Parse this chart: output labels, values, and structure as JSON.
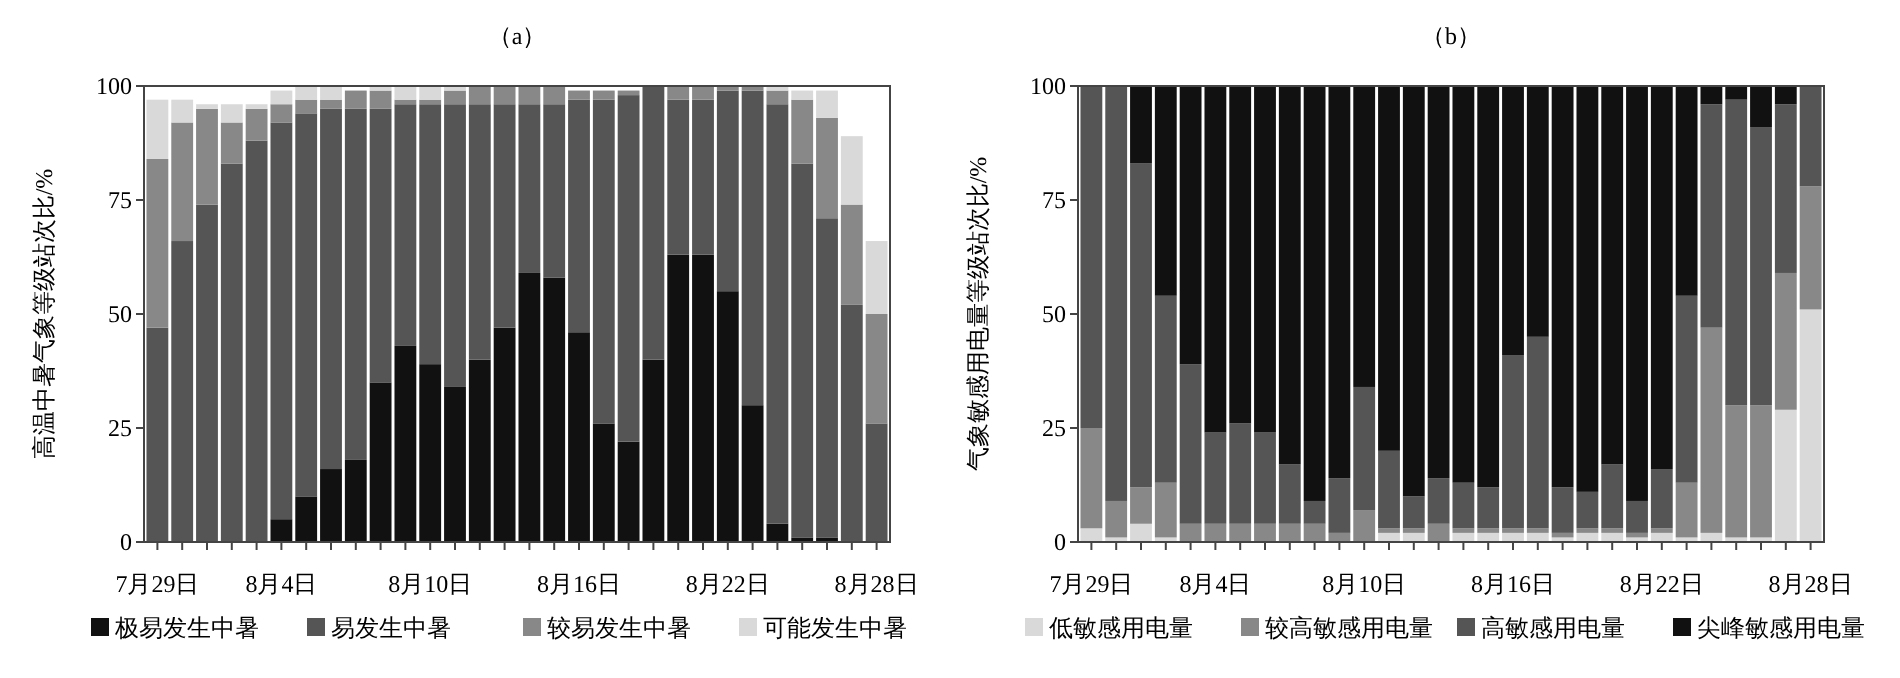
{
  "chart_data": [
    {
      "type": "bar",
      "title": "（a）",
      "ylabel": "高温中暑气象等级站次比/%",
      "stacked": true,
      "categories": [
        "7月29日",
        null,
        null,
        null,
        null,
        "8月4日",
        null,
        null,
        null,
        null,
        null,
        "8月10日",
        null,
        null,
        null,
        null,
        null,
        "8月16日",
        null,
        null,
        null,
        null,
        null,
        "8月22日",
        null,
        null,
        null,
        null,
        null,
        "8月28日"
      ],
      "series": [
        {
          "name": "极易发生中暑",
          "color": "#111111",
          "values": [
            0,
            0,
            0,
            0,
            0,
            5,
            10,
            16,
            18,
            35,
            43,
            39,
            34,
            40,
            47,
            59,
            58,
            46,
            26,
            22,
            40,
            63,
            63,
            55,
            30,
            4,
            1,
            1,
            0,
            0
          ]
        },
        {
          "name": "易发生中暑",
          "color": "#555555",
          "values": [
            47,
            66,
            74,
            83,
            88,
            87,
            84,
            79,
            77,
            60,
            53,
            57,
            62,
            56,
            49,
            37,
            38,
            51,
            71,
            76,
            60,
            34,
            34,
            44,
            69,
            92,
            82,
            70,
            52,
            26
          ]
        },
        {
          "name": "较易发生中暑",
          "color": "#888888",
          "values": [
            37,
            26,
            21,
            9,
            7,
            4,
            3,
            2,
            4,
            4,
            1,
            1,
            3,
            4,
            4,
            4,
            4,
            2,
            2,
            1,
            0,
            3,
            3,
            1,
            1,
            3,
            14,
            22,
            22,
            24
          ]
        },
        {
          "name": "可能发生中暑",
          "color": "#d9d9d9",
          "values": [
            13,
            5,
            1,
            4,
            1,
            3,
            3,
            3,
            0,
            1,
            3,
            3,
            1,
            0,
            0,
            0,
            0,
            0,
            0,
            0,
            0,
            0,
            0,
            0,
            0,
            1,
            2,
            6,
            15,
            16
          ]
        }
      ],
      "ylim": [
        0,
        100
      ],
      "yticks": [
        0,
        25,
        50,
        75,
        100
      ],
      "grid": false,
      "legend": "bottom"
    },
    {
      "type": "bar",
      "title": "（b）",
      "ylabel": "气象敏感用电量等级站次比/%",
      "stacked": true,
      "categories": [
        "7月29日",
        null,
        null,
        null,
        null,
        "8月4日",
        null,
        null,
        null,
        null,
        null,
        "8月10日",
        null,
        null,
        null,
        null,
        null,
        "8月16日",
        null,
        null,
        null,
        null,
        null,
        "8月22日",
        null,
        null,
        null,
        null,
        null,
        "8月28日"
      ],
      "series": [
        {
          "name": "低敏感用电量",
          "color": "#d9d9d9",
          "values": [
            3,
            1,
            4,
            1,
            0,
            0,
            0,
            0,
            0,
            0,
            0,
            0,
            2,
            2,
            0,
            2,
            2,
            2,
            2,
            1,
            2,
            2,
            1,
            2,
            1,
            2,
            1,
            1,
            29,
            51
          ]
        },
        {
          "name": "较高敏感用电量",
          "color": "#888888",
          "values": [
            22,
            8,
            8,
            12,
            4,
            4,
            4,
            4,
            4,
            4,
            2,
            7,
            1,
            1,
            4,
            1,
            1,
            1,
            1,
            1,
            1,
            1,
            1,
            1,
            12,
            45,
            29,
            29,
            30,
            27
          ]
        },
        {
          "name": "高敏感用电量",
          "color": "#555555",
          "values": [
            75,
            91,
            71,
            41,
            35,
            20,
            22,
            20,
            13,
            5,
            12,
            27,
            17,
            7,
            10,
            10,
            9,
            38,
            42,
            10,
            8,
            14,
            7,
            13,
            41,
            49,
            67,
            61,
            37,
            22
          ]
        },
        {
          "name": "尖峰敏感用电量",
          "color": "#111111",
          "values": [
            0,
            0,
            17,
            46,
            61,
            76,
            74,
            76,
            83,
            91,
            86,
            66,
            80,
            90,
            86,
            87,
            88,
            59,
            55,
            88,
            89,
            83,
            91,
            84,
            46,
            4,
            3,
            9,
            4,
            0
          ]
        }
      ],
      "ylim": [
        0,
        100
      ],
      "yticks": [
        0,
        25,
        50,
        75,
        100
      ],
      "grid": false,
      "legend": "bottom"
    }
  ]
}
